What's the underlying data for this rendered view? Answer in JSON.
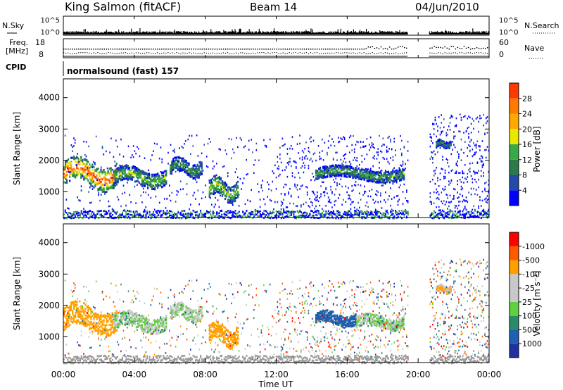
{
  "header": {
    "station": "King Salmon (fitACF)",
    "beam": "Beam 14",
    "date": "04/Jun/2010"
  },
  "strips": {
    "nsky_label": "N.Sky",
    "nsky_ticks": [
      "10^5",
      "10^0"
    ],
    "nsearch_label": "N.Search",
    "freq_label_1": "Freq.",
    "freq_label_2": "[MHz]",
    "freq_ticks": [
      "18",
      "8"
    ],
    "nave_label": "Nave",
    "nave_ticks": [
      "60",
      "0"
    ],
    "cpid_label": "CPID",
    "cpid_text": "normalsound (fast) 157"
  },
  "colors": {
    "power": [
      "#0000ff",
      "#214ba5",
      "#2b7a4a",
      "#3aa847",
      "#e8e800",
      "#ffaa00",
      "#ff7a00",
      "#ff3a00",
      "#ff0000"
    ],
    "velocity": [
      "#ff0000",
      "#ff5a00",
      "#ffa000",
      "#c8c8c8",
      "#c8c8c8",
      "#60d040",
      "#2a8a6a",
      "#2060b0",
      "#2030a0"
    ],
    "ground_scatter": "#999999"
  },
  "chart_data": [
    {
      "type": "heatmap",
      "name": "power",
      "xlabel": "Time UT",
      "ylabel": "Slant Range [km]",
      "xlim": [
        0,
        24
      ],
      "ylim": [
        180,
        4600
      ],
      "x_tick_labels": [
        "00:00",
        "04:00",
        "08:00",
        "12:00",
        "16:00",
        "20:00",
        "00:00"
      ],
      "y_tick_labels": [
        "1000",
        "2000",
        "3000",
        "4000"
      ],
      "colorbar_label": "Power [dB]",
      "colorbar_ticks": [
        "4",
        "8",
        "12",
        "16",
        "20",
        "24",
        "28"
      ],
      "data_gap": [
        19.4,
        20.6
      ],
      "features": [
        {
          "t0": 0.0,
          "t1": 3.0,
          "r_center": 1600,
          "r_width": 450,
          "peak_db": 30
        },
        {
          "t0": 2.8,
          "t1": 5.8,
          "r_center": 1500,
          "r_width": 300,
          "peak_db": 16
        },
        {
          "t0": 6.0,
          "t1": 7.8,
          "r_center": 1800,
          "r_width": 280,
          "peak_db": 12
        },
        {
          "t0": 8.2,
          "t1": 9.8,
          "r_center": 1100,
          "r_width": 350,
          "peak_db": 18
        },
        {
          "t0": 14.2,
          "t1": 19.2,
          "r_center": 1600,
          "r_width": 220,
          "peak_db": 14
        },
        {
          "t0": 21.0,
          "t1": 21.8,
          "r_center": 2550,
          "r_width": 120,
          "peak_db": 12
        }
      ]
    },
    {
      "type": "heatmap",
      "name": "velocity",
      "xlabel": "Time UT",
      "ylabel": "Slant Range [km]",
      "xlim": [
        0,
        24
      ],
      "ylim": [
        180,
        4600
      ],
      "x_tick_labels": [
        "00:00",
        "04:00",
        "08:00",
        "12:00",
        "16:00",
        "20:00",
        "00:00"
      ],
      "y_tick_labels": [
        "1000",
        "2000",
        "3000",
        "4000"
      ],
      "colorbar_label": "Velocity [m s⁻¹]",
      "colorbar_ticks": [
        "1000",
        "500",
        "100",
        "25",
        "-25",
        "-100",
        "-500",
        "-1000"
      ],
      "data_gap": [
        19.4,
        20.6
      ],
      "features": [
        {
          "t0": 0.0,
          "t1": 3.0,
          "r_center": 1600,
          "r_width": 450,
          "velocity": -300
        },
        {
          "t0": 2.8,
          "t1": 5.8,
          "r_center": 1500,
          "r_width": 300,
          "velocity": 0
        },
        {
          "t0": 6.0,
          "t1": 7.8,
          "r_center": 1800,
          "r_width": 280,
          "velocity": 0
        },
        {
          "t0": 8.2,
          "t1": 9.8,
          "r_center": 1100,
          "r_width": 350,
          "velocity": -200
        },
        {
          "t0": 14.2,
          "t1": 16.5,
          "r_center": 1600,
          "r_width": 220,
          "velocity": 300
        },
        {
          "t0": 16.5,
          "t1": 19.2,
          "r_center": 1500,
          "r_width": 220,
          "velocity": 0
        },
        {
          "t0": 21.0,
          "t1": 21.8,
          "r_center": 2550,
          "r_width": 120,
          "velocity": -100
        }
      ]
    }
  ]
}
